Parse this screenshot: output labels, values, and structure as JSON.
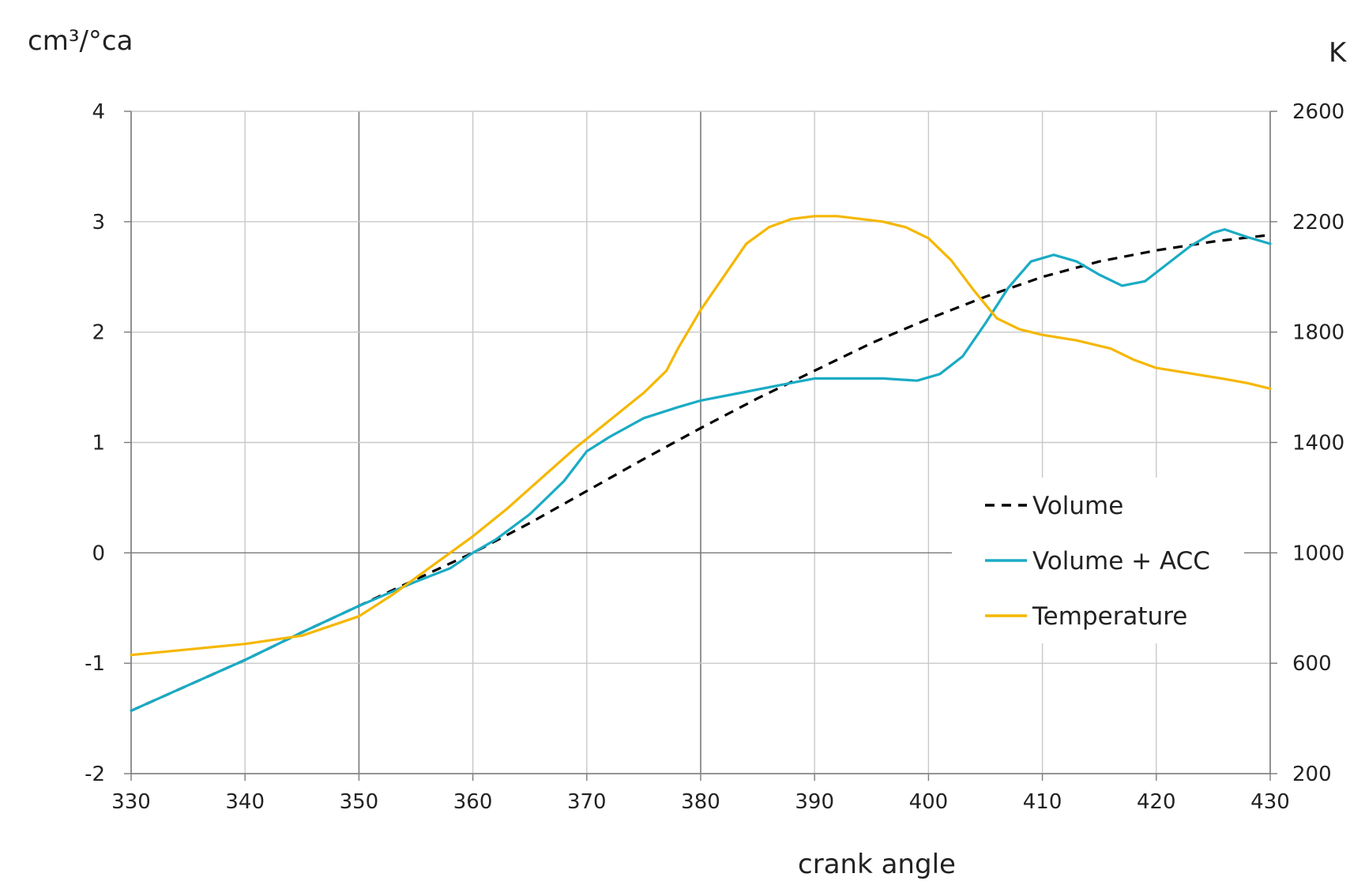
{
  "chart_data": {
    "type": "line",
    "title": "",
    "xlabel": "crank angle",
    "ylabel": "cm³/°ca",
    "y2label": "K",
    "xlim": [
      330,
      430
    ],
    "ylim": [
      -2,
      4
    ],
    "y2lim": [
      200,
      2600
    ],
    "x_ticks": [
      "330",
      "340",
      "350",
      "360",
      "370",
      "380",
      "390",
      "400",
      "410",
      "420",
      "430"
    ],
    "y_ticks": [
      "-2",
      "-1",
      "0",
      "1",
      "2",
      "3",
      "4"
    ],
    "y2_ticks": [
      "200",
      "600",
      "1000",
      "1400",
      "1800",
      "2200",
      "2600"
    ],
    "grid": true,
    "legend_position": "right",
    "series": [
      {
        "name": "Volume",
        "axis": "left",
        "color": "#000000",
        "style": "dashed",
        "x": [
          330,
          335,
          340,
          345,
          350,
          355,
          360,
          365,
          370,
          375,
          380,
          385,
          390,
          395,
          400,
          405,
          410,
          415,
          420,
          425,
          430
        ],
        "y": [
          -1.43,
          -1.2,
          -0.97,
          -0.72,
          -0.48,
          -0.24,
          0.0,
          0.27,
          0.56,
          0.85,
          1.13,
          1.4,
          1.65,
          1.9,
          2.12,
          2.32,
          2.5,
          2.64,
          2.74,
          2.82,
          2.88
        ]
      },
      {
        "name": "Volume + ACC",
        "axis": "left",
        "color": "#1aabc4",
        "style": "solid",
        "x": [
          330,
          335,
          340,
          345,
          350,
          355,
          358,
          360,
          362,
          365,
          368,
          370,
          372,
          375,
          378,
          380,
          383,
          386,
          390,
          393,
          396,
          399,
          401,
          403,
          405,
          407,
          409,
          411,
          413,
          415,
          417,
          419,
          421,
          423,
          425,
          426,
          428,
          430
        ],
        "y": [
          -1.43,
          -1.2,
          -0.97,
          -0.72,
          -0.48,
          -0.26,
          -0.14,
          0.0,
          0.12,
          0.35,
          0.65,
          0.92,
          1.05,
          1.22,
          1.32,
          1.38,
          1.44,
          1.5,
          1.58,
          1.58,
          1.58,
          1.56,
          1.62,
          1.78,
          2.08,
          2.4,
          2.64,
          2.7,
          2.64,
          2.52,
          2.42,
          2.46,
          2.62,
          2.78,
          2.9,
          2.93,
          2.86,
          2.8
        ]
      },
      {
        "name": "Temperature",
        "axis": "right",
        "color": "#f5b700",
        "style": "solid",
        "x": [
          330,
          335,
          340,
          345,
          350,
          353,
          356,
          358,
          360,
          363,
          366,
          369,
          372,
          375,
          377,
          378,
          380,
          382,
          384,
          386,
          388,
          390,
          392,
          394,
          396,
          398,
          400,
          402,
          404,
          406,
          408,
          410,
          413,
          416,
          418,
          420,
          423,
          426,
          428,
          430
        ],
        "y": [
          630,
          650,
          670,
          700,
          770,
          850,
          940,
          1000,
          1060,
          1160,
          1270,
          1380,
          1480,
          1580,
          1660,
          1740,
          1880,
          2000,
          2120,
          2180,
          2210,
          2220,
          2220,
          2210,
          2200,
          2180,
          2140,
          2060,
          1950,
          1850,
          1810,
          1790,
          1770,
          1740,
          1700,
          1670,
          1650,
          1630,
          1615,
          1595
        ]
      }
    ]
  }
}
